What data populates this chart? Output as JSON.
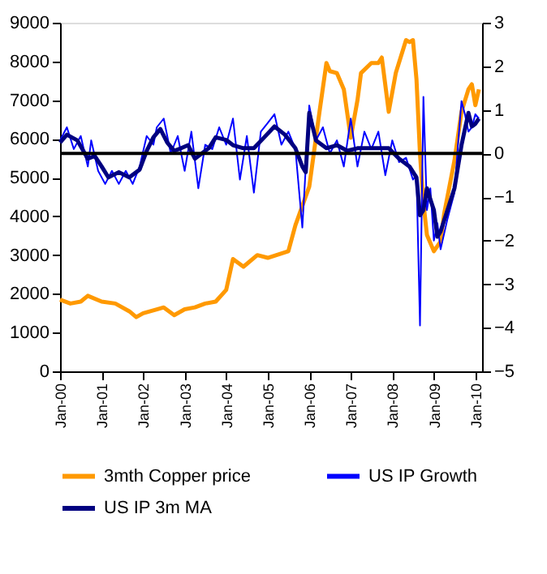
{
  "chart_data": {
    "type": "line",
    "xlim": [
      "2000-01",
      "2010-03"
    ],
    "xticks": [
      {
        "value": "2000-01",
        "label": "Jan-00"
      },
      {
        "value": "2001-01",
        "label": "Jan-01"
      },
      {
        "value": "2002-01",
        "label": "Jan-02"
      },
      {
        "value": "2003-01",
        "label": "Jan-03"
      },
      {
        "value": "2004-01",
        "label": "Jan-04"
      },
      {
        "value": "2005-01",
        "label": "Jan-05"
      },
      {
        "value": "2006-01",
        "label": "Jan-06"
      },
      {
        "value": "2007-01",
        "label": "Jan-07"
      },
      {
        "value": "2008-01",
        "label": "Jan-08"
      },
      {
        "value": "2009-01",
        "label": "Jan-09"
      },
      {
        "value": "2010-01",
        "label": "Jan-10"
      }
    ],
    "ylim": [
      0,
      9000
    ],
    "yticks": [
      0,
      1000,
      2000,
      3000,
      4000,
      5000,
      6000,
      7000,
      8000,
      9000
    ],
    "y2lim": [
      -5,
      3
    ],
    "y2ticks": [
      -5,
      -4,
      -3,
      -2,
      -1,
      0,
      1,
      2,
      3
    ],
    "grid": false,
    "legend": "bottom",
    "marker": "none",
    "line_style": "solid",
    "ref_lines": [
      {
        "axis": "y2",
        "value": 0,
        "label": null,
        "color": "#000000"
      }
    ],
    "series": [
      {
        "name": "3mth Copper price",
        "color": "#ff9900",
        "x": [
          "2000-01",
          "2000-04",
          "2000-07",
          "2000-09",
          "2001-01",
          "2001-05",
          "2001-09",
          "2001-11",
          "2002-01",
          "2002-05",
          "2002-07",
          "2002-10",
          "2003-01",
          "2003-04",
          "2003-07",
          "2003-10",
          "2004-01",
          "2004-03",
          "2004-06",
          "2004-10",
          "2005-01",
          "2005-07",
          "2005-09",
          "2006-01",
          "2006-04",
          "2006-06",
          "2006-07",
          "2006-09",
          "2006-11",
          "2007-01",
          "2007-03",
          "2007-04",
          "2007-07",
          "2007-09",
          "2007-10",
          "2007-12",
          "2008-02",
          "2008-05",
          "2008-06",
          "2008-07",
          "2008-08",
          "2008-09",
          "2008-10",
          "2008-11",
          "2009-01",
          "2009-03",
          "2009-04",
          "2009-07",
          "2009-09",
          "2009-11",
          "2009-12",
          "2010-01",
          "2010-02"
        ],
        "values": [
          1850,
          1750,
          1800,
          1950,
          1800,
          1750,
          1550,
          1400,
          1500,
          1600,
          1650,
          1450,
          1600,
          1650,
          1750,
          1800,
          2100,
          2900,
          2700,
          3000,
          2930,
          3100,
          3770,
          4770,
          6700,
          7960,
          7750,
          7700,
          7280,
          6030,
          7000,
          7700,
          7960,
          7960,
          8100,
          6700,
          7700,
          8550,
          8500,
          8550,
          7540,
          5610,
          4360,
          3520,
          3100,
          3350,
          4060,
          5440,
          6700,
          7280,
          7410,
          6870,
          7280
        ]
      },
      {
        "name": "US IP Growth",
        "color": "#0000ff",
        "axis": "y2",
        "x": [
          "2000-01",
          "2000-03",
          "2000-05",
          "2000-07",
          "2000-09",
          "2000-10",
          "2000-12",
          "2001-02",
          "2001-04",
          "2001-06",
          "2001-08",
          "2001-10",
          "2001-12",
          "2002-02",
          "2002-04",
          "2002-05",
          "2002-07",
          "2002-09",
          "2002-11",
          "2003-01",
          "2003-03",
          "2003-05",
          "2003-07",
          "2003-09",
          "2003-11",
          "2004-01",
          "2004-03",
          "2004-05",
          "2004-07",
          "2004-09",
          "2004-11",
          "2005-01",
          "2005-03",
          "2005-05",
          "2005-07",
          "2005-09",
          "2005-11",
          "2006-01",
          "2006-03",
          "2006-05",
          "2006-07",
          "2006-09",
          "2006-11",
          "2007-01",
          "2007-03",
          "2007-05",
          "2007-07",
          "2007-09",
          "2007-11",
          "2008-01",
          "2008-03",
          "2008-05",
          "2008-07",
          "2008-08",
          "2008-09",
          "2008-10",
          "2008-11",
          "2008-12",
          "2009-01",
          "2009-02",
          "2009-03",
          "2009-05",
          "2009-07",
          "2009-08",
          "2009-09",
          "2009-10",
          "2009-11",
          "2009-12",
          "2010-01",
          "2010-02"
        ],
        "values": [
          0.3,
          0.6,
          0.1,
          0.4,
          -0.3,
          0.3,
          -0.4,
          -0.7,
          -0.4,
          -0.7,
          -0.4,
          -0.7,
          -0.3,
          0.4,
          0.2,
          0.6,
          0.8,
          0,
          0.4,
          -0.4,
          0.5,
          -0.8,
          0.2,
          0.1,
          0.6,
          0.2,
          0.8,
          -0.6,
          0.4,
          -0.9,
          0.5,
          0.7,
          0.9,
          0.2,
          0.5,
          0.1,
          -1.7,
          1.1,
          0.3,
          0.6,
          0,
          0.3,
          -0.3,
          0.8,
          -0.3,
          0.5,
          0.1,
          0.5,
          -0.5,
          0.3,
          -0.2,
          -0.1,
          -0.6,
          -0.5,
          -3.95,
          1.3,
          -1.3,
          -0.8,
          -2.0,
          -1.6,
          -2.2,
          -1.5,
          -0.9,
          0.2,
          1.2,
          0.9,
          0.5,
          0.6,
          0.9,
          0.8
        ]
      },
      {
        "name": "US IP 3m MA",
        "color": "#000080",
        "axis": "y2",
        "x": [
          "2000-01",
          "2000-03",
          "2000-06",
          "2000-09",
          "2000-11",
          "2001-01",
          "2001-03",
          "2001-06",
          "2001-09",
          "2001-12",
          "2002-02",
          "2002-04",
          "2002-06",
          "2002-08",
          "2002-10",
          "2002-12",
          "2003-02",
          "2003-04",
          "2003-06",
          "2003-08",
          "2003-10",
          "2004-01",
          "2004-03",
          "2004-06",
          "2004-09",
          "2004-12",
          "2005-03",
          "2005-06",
          "2005-09",
          "2005-11",
          "2005-12",
          "2006-01",
          "2006-03",
          "2006-06",
          "2006-09",
          "2006-12",
          "2007-03",
          "2007-06",
          "2007-09",
          "2007-12",
          "2008-03",
          "2008-06",
          "2008-08",
          "2008-09",
          "2008-10",
          "2008-11",
          "2008-12",
          "2009-01",
          "2009-02",
          "2009-03",
          "2009-05",
          "2009-07",
          "2009-09",
          "2009-10",
          "2009-11",
          "2009-12",
          "2010-01",
          "2010-02"
        ],
        "values": [
          0.25,
          0.43,
          0.3,
          -0.12,
          -0.06,
          -0.3,
          -0.55,
          -0.43,
          -0.55,
          -0.37,
          0.06,
          0.37,
          0.56,
          0.25,
          0.06,
          0.12,
          0.19,
          -0.12,
          0,
          0.12,
          0.37,
          0.31,
          0.19,
          0.12,
          0.12,
          0.37,
          0.62,
          0.43,
          0.12,
          -0.3,
          -0.43,
          0.93,
          0.3,
          0.12,
          0.19,
          0.06,
          0.12,
          0.12,
          0.12,
          0.12,
          -0.12,
          -0.3,
          -0.55,
          -1.42,
          -1.3,
          -0.8,
          -1.05,
          -1.3,
          -1.91,
          -1.79,
          -1.3,
          -0.8,
          0.19,
          0.56,
          0.93,
          0.62,
          0.68,
          0.8
        ]
      }
    ]
  }
}
